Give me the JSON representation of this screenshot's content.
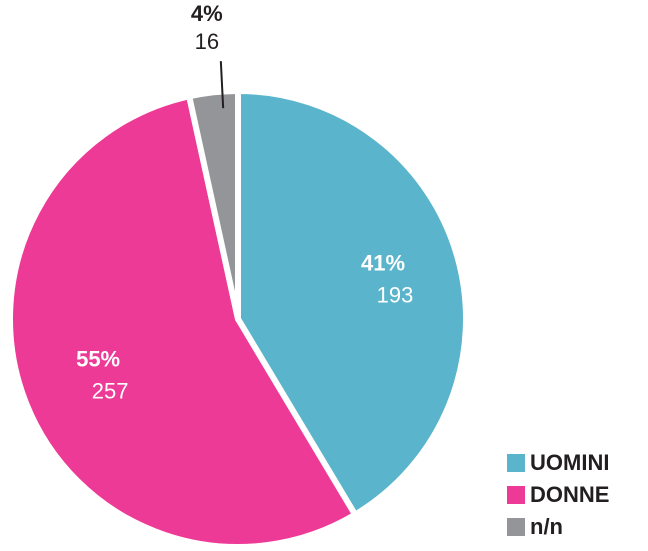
{
  "chart_data": {
    "type": "pie",
    "categories": [
      "UOMINI",
      "DONNE",
      "n/n"
    ],
    "values": [
      193,
      257,
      16
    ],
    "percent_labels": [
      "41%",
      "55%",
      "4%"
    ],
    "colors": [
      "#5ab4cb",
      "#ee3a97",
      "#939598"
    ],
    "legend": "bottom-right"
  }
}
